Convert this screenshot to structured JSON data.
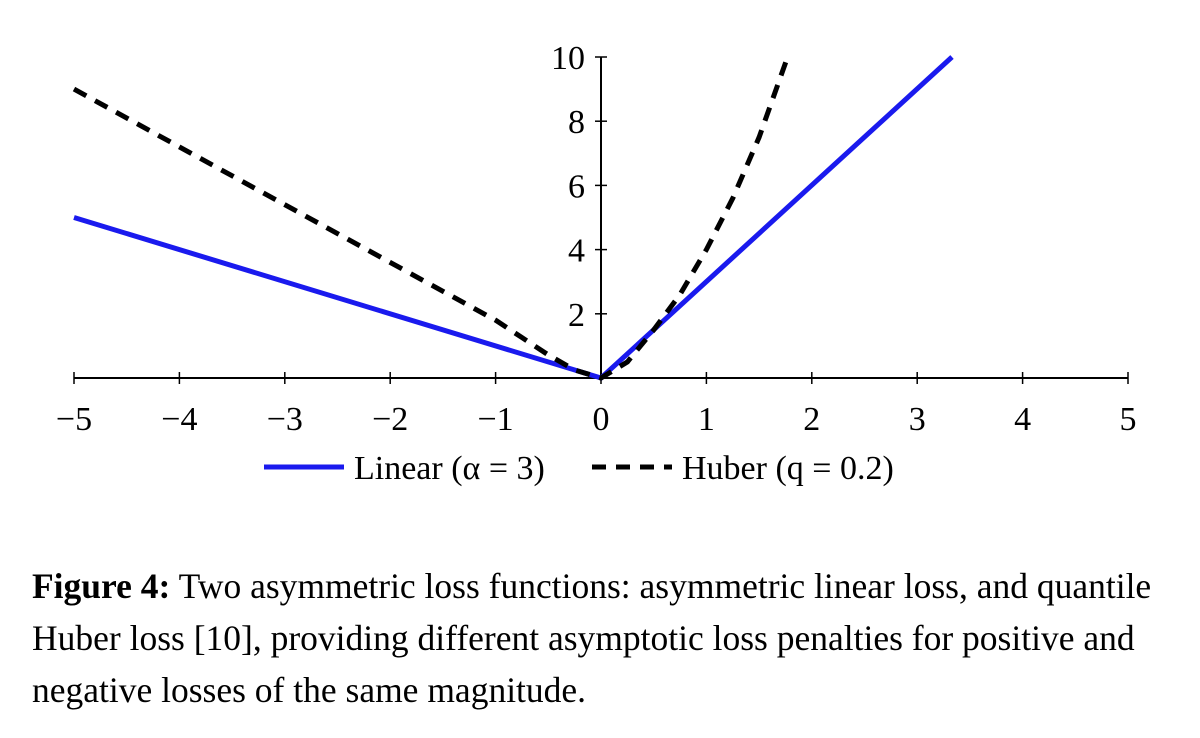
{
  "chart_data": {
    "type": "line",
    "xlim": [
      -5,
      5
    ],
    "ylim": [
      0,
      10
    ],
    "xticks": [
      -5,
      -4,
      -3,
      -2,
      -1,
      0,
      1,
      2,
      3,
      4,
      5
    ],
    "yticks": [
      2,
      4,
      6,
      8,
      10
    ],
    "grid": false,
    "legend_position": "bottom",
    "series": [
      {
        "name": "Linear (α = 3)",
        "color": "#1a1aee",
        "style": "solid",
        "x": [
          -5,
          0,
          3.33
        ],
        "y": [
          5,
          0,
          10
        ]
      },
      {
        "name": "Huber (q = 0.2)",
        "color": "#000000",
        "style": "dashed",
        "x": [
          -5,
          -4,
          -3,
          -2,
          -1,
          -0.75,
          -0.5,
          -0.25,
          0,
          0.25,
          0.5,
          0.75,
          1,
          1.25,
          1.5,
          1.77
        ],
        "y": [
          9,
          7.2,
          5.4,
          3.6,
          1.8,
          1.26,
          0.72,
          0.25,
          0,
          0.5,
          1.5,
          2.6,
          4,
          5.6,
          7.5,
          10
        ]
      }
    ]
  },
  "legend": {
    "linear": "Linear (α = 3)",
    "huber": "Huber (q = 0.2)"
  },
  "caption": {
    "label": "Figure 4:",
    "text": " Two asymmetric loss functions: asymmetric linear loss, and quantile Huber loss [10], providing different asymptotic loss penalties for positive and negative losses of the same magnitude."
  }
}
